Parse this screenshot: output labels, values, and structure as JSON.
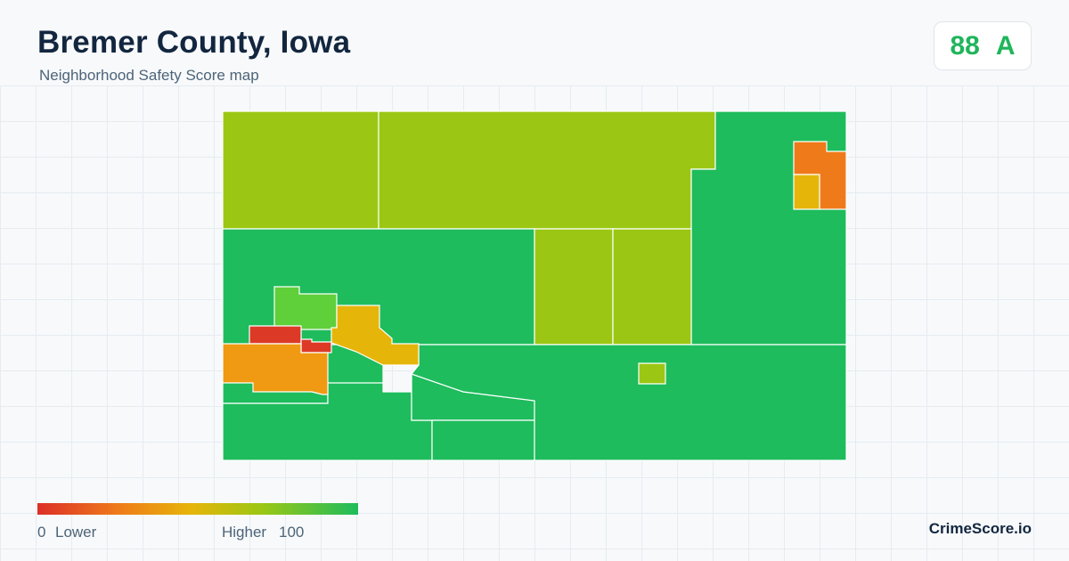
{
  "header": {
    "title": "Bremer County, Iowa",
    "subtitle": "Neighborhood Safety Score map"
  },
  "score": {
    "value": "88",
    "grade": "A",
    "color": "#1fb55a"
  },
  "legend": {
    "min_value": "0",
    "min_label": "Lower",
    "max_label": "Higher",
    "max_value": "100",
    "colors": [
      "#dc2f28",
      "#ef7a1a",
      "#e6b50a",
      "#9bc714",
      "#1ebc5c"
    ]
  },
  "brand": {
    "name": "CrimeScore.io"
  },
  "map": {
    "score_colors": {
      "high": "#1ebc5c",
      "light-green": "#5fcf3a",
      "yellow-green": "#9bc714",
      "yellow": "#e6b50a",
      "orange": "#ef9a12",
      "deep-orange": "#ef7a1a",
      "red": "#dc3a26"
    }
  }
}
